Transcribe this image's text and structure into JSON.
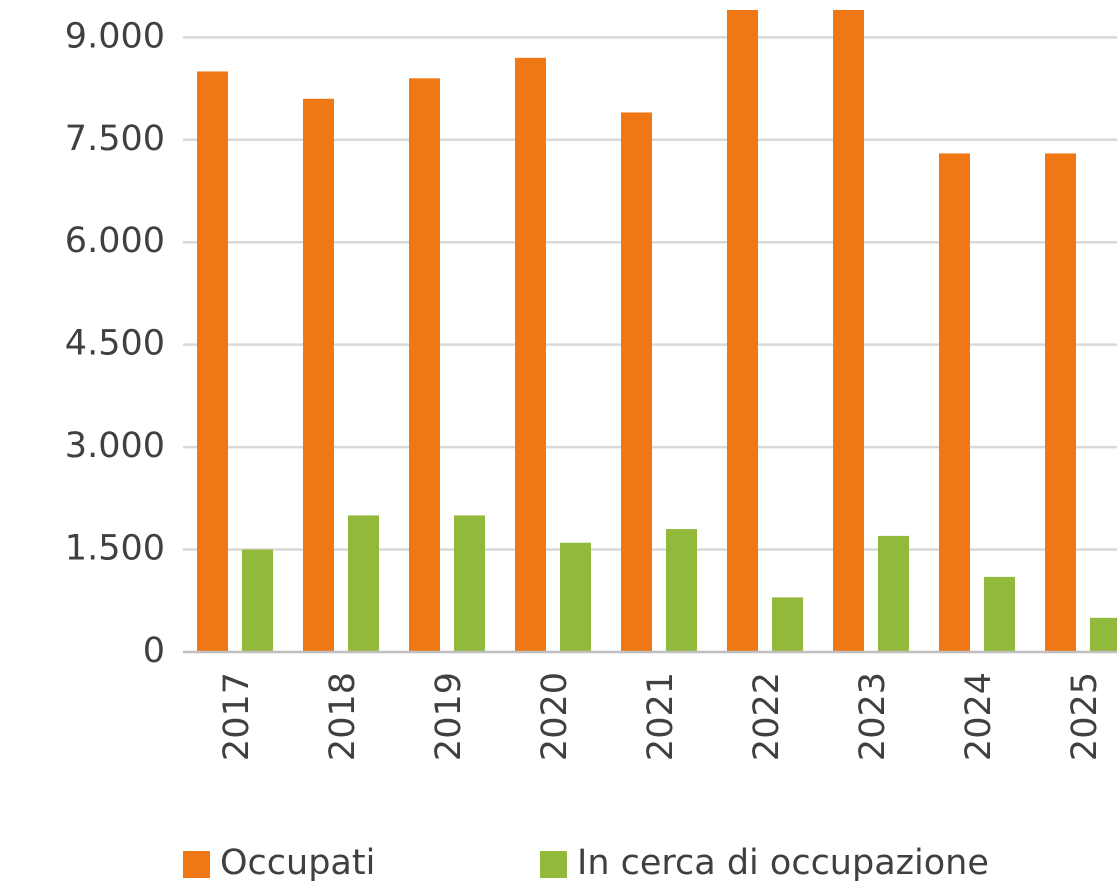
{
  "chart_data": {
    "type": "bar",
    "categories": [
      "2017",
      "2018",
      "2019",
      "2020",
      "2021",
      "2022",
      "2023",
      "2024",
      "2025"
    ],
    "series": [
      {
        "name": "Occupati",
        "color": "#f07814",
        "values": [
          8500,
          8100,
          8400,
          8700,
          7900,
          9400,
          9400,
          7300,
          7300
        ]
      },
      {
        "name": "In cerca di occupazione",
        "color": "#92b83c",
        "values": [
          1500,
          2000,
          2000,
          1600,
          1800,
          800,
          1700,
          1100,
          500
        ]
      }
    ],
    "ylim": [
      0,
      9400
    ],
    "yticks": [
      0,
      {
        "value": 1500,
        "label": "1.500"
      },
      {
        "value": 3000,
        "label": "3.000"
      },
      {
        "value": 4500,
        "label": "4.500"
      },
      {
        "value": 6000,
        "label": "6.000"
      },
      {
        "value": 7500,
        "label": "7.500"
      },
      {
        "value": 9000,
        "label": "9.000"
      }
    ],
    "grid": true,
    "legend": "bottom"
  }
}
